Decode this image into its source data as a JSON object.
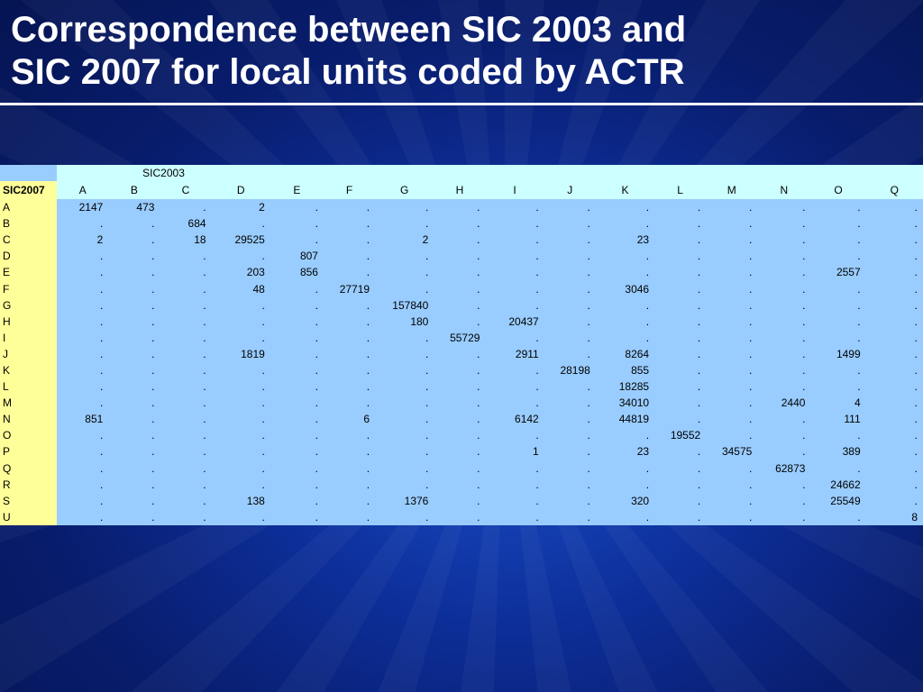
{
  "title": {
    "line1": "Correspondence between SIC 2003 and",
    "line2": "SIC 2007 for local units coded by ACTR"
  },
  "table": {
    "col_caption": "SIC2003",
    "row_caption": "SIC2007",
    "columns": [
      "A",
      "B",
      "C",
      "D",
      "E",
      "F",
      "G",
      "H",
      "I",
      "J",
      "K",
      "L",
      "M",
      "N",
      "O",
      "Q"
    ],
    "rows": [
      {
        "label": "A",
        "cells": [
          "2147",
          "473",
          ".",
          "2",
          ".",
          ".",
          ".",
          ".",
          ".",
          ".",
          ".",
          ".",
          ".",
          ".",
          ".",
          "."
        ]
      },
      {
        "label": "B",
        "cells": [
          ".",
          ".",
          "684",
          ".",
          ".",
          ".",
          ".",
          ".",
          ".",
          ".",
          ".",
          ".",
          ".",
          ".",
          ".",
          "."
        ]
      },
      {
        "label": "C",
        "cells": [
          "2",
          ".",
          "18",
          "29525",
          ".",
          ".",
          "2",
          ".",
          ".",
          ".",
          "23",
          ".",
          ".",
          ".",
          ".",
          "."
        ]
      },
      {
        "label": "D",
        "cells": [
          ".",
          ".",
          ".",
          ".",
          "807",
          ".",
          ".",
          ".",
          ".",
          ".",
          ".",
          ".",
          ".",
          ".",
          ".",
          "."
        ]
      },
      {
        "label": "E",
        "cells": [
          ".",
          ".",
          ".",
          "203",
          "856",
          ".",
          ".",
          ".",
          ".",
          ".",
          ".",
          ".",
          ".",
          ".",
          "2557",
          "."
        ]
      },
      {
        "label": "F",
        "cells": [
          ".",
          ".",
          ".",
          "48",
          ".",
          "27719",
          ".",
          ".",
          ".",
          ".",
          "3046",
          ".",
          ".",
          ".",
          ".",
          "."
        ]
      },
      {
        "label": "G",
        "cells": [
          ".",
          ".",
          ".",
          ".",
          ".",
          ".",
          "157840",
          ".",
          ".",
          ".",
          ".",
          ".",
          ".",
          ".",
          ".",
          "."
        ]
      },
      {
        "label": "H",
        "cells": [
          ".",
          ".",
          ".",
          ".",
          ".",
          ".",
          "180",
          ".",
          "20437",
          ".",
          ".",
          ".",
          ".",
          ".",
          ".",
          "."
        ]
      },
      {
        "label": "I",
        "cells": [
          ".",
          ".",
          ".",
          ".",
          ".",
          ".",
          ".",
          "55729",
          ".",
          ".",
          ".",
          ".",
          ".",
          ".",
          ".",
          "."
        ]
      },
      {
        "label": "J",
        "cells": [
          ".",
          ".",
          ".",
          "1819",
          ".",
          ".",
          ".",
          ".",
          "2911",
          ".",
          "8264",
          ".",
          ".",
          ".",
          "1499",
          "."
        ]
      },
      {
        "label": "K",
        "cells": [
          ".",
          ".",
          ".",
          ".",
          ".",
          ".",
          ".",
          ".",
          ".",
          "28198",
          "855",
          ".",
          ".",
          ".",
          ".",
          "."
        ]
      },
      {
        "label": "L",
        "cells": [
          ".",
          ".",
          ".",
          ".",
          ".",
          ".",
          ".",
          ".",
          ".",
          ".",
          "18285",
          ".",
          ".",
          ".",
          ".",
          "."
        ]
      },
      {
        "label": "M",
        "cells": [
          ".",
          ".",
          ".",
          ".",
          ".",
          ".",
          ".",
          ".",
          ".",
          ".",
          "34010",
          ".",
          ".",
          "2440",
          "4",
          "."
        ]
      },
      {
        "label": "N",
        "cells": [
          "851",
          ".",
          ".",
          ".",
          ".",
          "6",
          ".",
          ".",
          "6142",
          ".",
          "44819",
          ".",
          ".",
          ".",
          "111",
          "."
        ]
      },
      {
        "label": "O",
        "cells": [
          ".",
          ".",
          ".",
          ".",
          ".",
          ".",
          ".",
          ".",
          ".",
          ".",
          ".",
          "19552",
          ".",
          ".",
          ".",
          "."
        ]
      },
      {
        "label": "P",
        "cells": [
          ".",
          ".",
          ".",
          ".",
          ".",
          ".",
          ".",
          ".",
          "1",
          ".",
          "23",
          ".",
          "34575",
          ".",
          "389",
          "."
        ]
      },
      {
        "label": "Q",
        "cells": [
          ".",
          ".",
          ".",
          ".",
          ".",
          ".",
          ".",
          ".",
          ".",
          ".",
          ".",
          ".",
          ".",
          "62873",
          ".",
          "."
        ]
      },
      {
        "label": "R",
        "cells": [
          ".",
          ".",
          ".",
          ".",
          ".",
          ".",
          ".",
          ".",
          ".",
          ".",
          ".",
          ".",
          ".",
          ".",
          "24662",
          "."
        ]
      },
      {
        "label": "S",
        "cells": [
          ".",
          ".",
          ".",
          "138",
          ".",
          ".",
          "1376",
          ".",
          ".",
          ".",
          "320",
          ".",
          ".",
          ".",
          "25549",
          "."
        ]
      },
      {
        "label": "U",
        "cells": [
          ".",
          ".",
          ".",
          ".",
          ".",
          ".",
          ".",
          ".",
          ".",
          ".",
          ".",
          ".",
          ".",
          ".",
          ".",
          "8"
        ]
      }
    ]
  },
  "colors": {
    "background": "#0d2f9a",
    "title_text": "#ffffff",
    "header_fill": "#ccffff",
    "row_label_fill": "#ffff99",
    "cell_fill": "#99ccff"
  }
}
